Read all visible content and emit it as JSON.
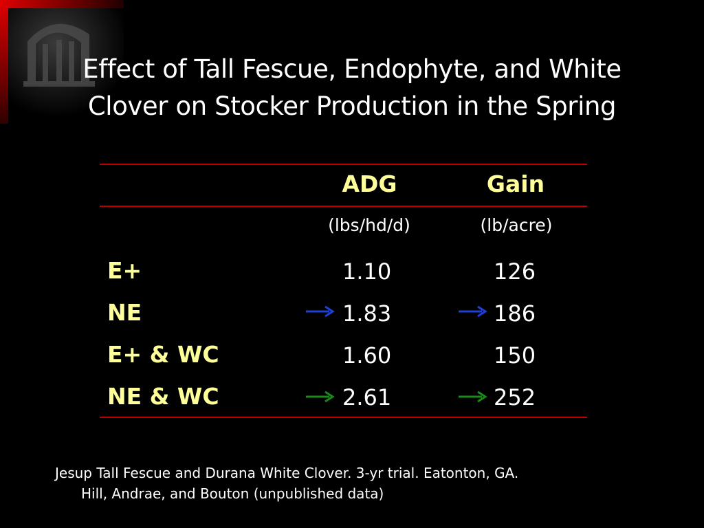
{
  "slide": {
    "title_line1": "Effect of Tall Fescue, Endophyte, and White",
    "title_line2": "Clover on Stocker Production in the Spring"
  },
  "table": {
    "columns": [
      {
        "header": "ADG",
        "unit": "(lbs/hd/d)"
      },
      {
        "header": "Gain",
        "unit": "(lb/acre)"
      }
    ],
    "rows": [
      {
        "label": "E+",
        "adg": "1.10",
        "gain": "126",
        "arrow": null
      },
      {
        "label": "NE",
        "adg": "1.83",
        "gain": "186",
        "arrow": "blue"
      },
      {
        "label": "E+ & WC",
        "adg": "1.60",
        "gain": "150",
        "arrow": null
      },
      {
        "label": "NE & WC",
        "adg": "2.61",
        "gain": "252",
        "arrow": "green"
      }
    ]
  },
  "footnote": {
    "line1": "Jesup Tall Fescue and Durana White Clover. 3-yr trial. Eatonton, GA.",
    "line2": "Hill, Andrae, and Bouton (unpublished data)"
  },
  "colors": {
    "background": "#000000",
    "accent_red": "#c00000",
    "header_yellow": "#ffff99",
    "arrow_blue": "#1f3fd9",
    "arrow_green": "#1a8a1a"
  },
  "icons": {
    "logo": "university-arch-logo",
    "arrow": "right-arrow-icon"
  }
}
